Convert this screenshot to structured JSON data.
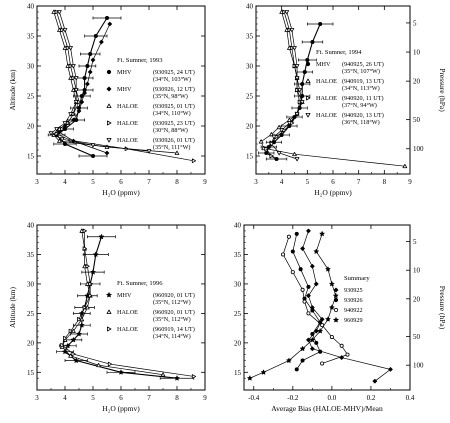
{
  "chart_data": [
    {
      "type": "line",
      "xlabel": "H₂O (ppmv)",
      "ylabel": "Altitude (km)",
      "xlim": [
        3,
        9
      ],
      "ylim": [
        12,
        40
      ],
      "xticks": [
        3,
        4,
        5,
        6,
        7,
        8,
        9
      ],
      "yticks": [
        15,
        20,
        25,
        30,
        35,
        40
      ],
      "legend_title": "Ft. Sumner, 1993",
      "series": [
        {
          "name": "MHV",
          "detail": [
            "(930925, 24 UT)",
            "(34°N, 103°W)"
          ],
          "marker": "filled-circle",
          "x": [
            5.5,
            5.1,
            4.9,
            4.8,
            4.7,
            4.7,
            4.6,
            4.5,
            4.4,
            4.0,
            3.7,
            4.0,
            5.0
          ],
          "y": [
            38,
            35,
            32,
            30,
            28,
            26,
            25,
            23,
            21,
            19.5,
            18.5,
            17,
            15
          ],
          "xerr": [
            0.5,
            0.4,
            0.35,
            0.3,
            0.3,
            0.3,
            0.3,
            0.3,
            0.3,
            0.3,
            0.3,
            0.4,
            0.5
          ]
        },
        {
          "name": "MHV",
          "detail": [
            "(930926, 12 UT)",
            "(35°N, 98°W)"
          ],
          "marker": "filled-diamond",
          "x": [
            5.6,
            5.3,
            5.0,
            4.9,
            4.8,
            4.7,
            4.6,
            4.5,
            4.3,
            4.0,
            3.8,
            4.3,
            5.5
          ],
          "y": [
            37,
            34,
            31,
            29,
            27,
            25.5,
            24,
            22.5,
            21,
            20,
            19,
            17.5,
            15.5
          ]
        },
        {
          "name": "HALOE",
          "detail": [
            "(930925, 01 UT)",
            "(34°N, 110°W)"
          ],
          "marker": "open-triangle-up",
          "x": [
            3.6,
            3.8,
            4.0,
            4.1,
            4.2,
            4.3,
            4.4,
            4.3,
            4.1,
            3.8,
            3.6,
            3.8,
            5.5,
            8.0
          ],
          "y": [
            39,
            36,
            33,
            30,
            28,
            26,
            24,
            22,
            20.5,
            19.5,
            18.5,
            17.5,
            16.5,
            15.5
          ]
        },
        {
          "name": "HALOE",
          "detail": [
            "(930925, 23 UT)",
            "(30°N, 88°W)"
          ],
          "marker": "open-triangle-right",
          "x": [
            3.7,
            3.9,
            4.1,
            4.2,
            4.3,
            4.4,
            4.5,
            4.3,
            4.1,
            3.9,
            3.7,
            4.2,
            6.2,
            8.6
          ],
          "y": [
            39,
            36,
            33,
            30,
            28,
            26,
            24,
            22,
            20.5,
            19.5,
            18.7,
            17.6,
            16.2,
            14.2
          ]
        },
        {
          "name": "HALOE",
          "detail": [
            "(930926, 01 UT)",
            "(35°N, 111°W)"
          ],
          "marker": "open-triangle-down",
          "x": [
            3.8,
            4.0,
            4.2,
            4.3,
            4.4,
            4.4,
            4.4,
            4.2,
            4.0,
            3.7,
            3.5,
            3.9,
            5.0,
            7.0
          ],
          "y": [
            39,
            36,
            33,
            30,
            28,
            26,
            24,
            22,
            20.5,
            19.5,
            18.8,
            17.8,
            16.8,
            15.8
          ]
        }
      ]
    },
    {
      "type": "line",
      "xlabel": "H₂O (ppmv)",
      "ylabel": "",
      "y2label": "Pressure (hPa)",
      "xlim": [
        3,
        9
      ],
      "ylim": [
        12,
        40
      ],
      "xticks": [
        3,
        4,
        5,
        6,
        7,
        8,
        9
      ],
      "yticks": [
        15,
        20,
        25,
        30,
        35,
        40
      ],
      "pressure_ticks": [
        5,
        10,
        20,
        50,
        100
      ],
      "legend_title": "Ft. Sumner, 1994",
      "series": [
        {
          "name": "MHV",
          "detail": [
            "(940925, 26 UT)",
            "(35°N, 107°W)"
          ],
          "marker": "filled-circle",
          "x": [
            5.5,
            5.2,
            5.0,
            4.9,
            4.8,
            4.8,
            4.7,
            4.5,
            4.3,
            4.0,
            3.7,
            3.5,
            3.4,
            3.8
          ],
          "y": [
            37,
            34,
            31,
            29,
            27,
            25,
            23,
            21.5,
            20,
            18.5,
            17.3,
            16.5,
            15.5,
            14.5
          ],
          "xerr": [
            0.5,
            0.4,
            0.35,
            0.3,
            0.3,
            0.3,
            0.3,
            0.3,
            0.3,
            0.3,
            0.3,
            0.3,
            0.3,
            0.4
          ]
        },
        {
          "name": "HALOE",
          "detail": [
            "(940919, 13 UT)",
            "(34°N, 113°W)"
          ],
          "marker": "open-triangle-up",
          "x": [
            4.0,
            4.2,
            4.3,
            4.5,
            4.6,
            4.6,
            4.8,
            4.6,
            4.3,
            3.9,
            3.6,
            3.2,
            3.3,
            4.5,
            8.8
          ],
          "y": [
            39,
            36,
            33,
            30,
            28,
            26,
            24,
            22,
            21,
            19.8,
            18.6,
            17.4,
            16.3,
            15.3,
            13.3
          ]
        },
        {
          "name": "HALOE",
          "detail": [
            "(940920, 11 UT)",
            "(37°N, 94°W)"
          ],
          "marker": "open-triangle-right",
          "x": [
            4.1,
            4.3,
            4.4,
            4.5,
            4.6,
            4.6,
            4.7,
            4.6,
            4.4,
            4.1,
            3.8,
            3.6,
            3.4,
            3.6
          ],
          "y": [
            39,
            36,
            33,
            30,
            28,
            26,
            24,
            22,
            20.5,
            19.3,
            18.2,
            17.2,
            16.2,
            15.0
          ]
        },
        {
          "name": "HALOE",
          "detail": [
            "(940920, 13 UT)",
            "(36°N, 118°W)"
          ],
          "marker": "open-triangle-down",
          "x": [
            4.2,
            4.4,
            4.5,
            4.6,
            4.6,
            4.7,
            4.8,
            4.6,
            4.3,
            4.0,
            3.7,
            3.6,
            3.9,
            4.6
          ],
          "y": [
            39,
            36,
            33,
            30,
            28,
            26,
            24,
            22,
            20.5,
            19.3,
            18.2,
            17,
            15.5,
            14.5
          ]
        }
      ]
    },
    {
      "type": "line",
      "xlabel": "H₂O (ppmv)",
      "ylabel": "Altitude (km)",
      "xlim": [
        3,
        9
      ],
      "ylim": [
        12,
        40
      ],
      "xticks": [
        3,
        4,
        5,
        6,
        7,
        8,
        9
      ],
      "yticks": [
        15,
        20,
        25,
        30,
        35,
        40
      ],
      "legend_title": "Ft. Sumner, 1996",
      "series": [
        {
          "name": "MHV",
          "detail": [
            "(960920, 01 UT)",
            "(35°N, 112°W)"
          ],
          "marker": "filled-star",
          "x": [
            5.3,
            5.1,
            5.0,
            4.9,
            4.8,
            4.7,
            4.6,
            4.6,
            4.5,
            4.3,
            4.1,
            4.0,
            4.4,
            6.0,
            8.0
          ],
          "y": [
            38,
            35,
            32,
            30,
            28,
            26,
            25,
            23,
            21.5,
            20.5,
            19.5,
            18.5,
            17.0,
            15.0,
            14.0
          ],
          "xerr": [
            0.5,
            0.45,
            0.4,
            0.35,
            0.35,
            0.35,
            0.3,
            0.3,
            0.3,
            0.3,
            0.3,
            0.3,
            0.4,
            0.5,
            0.6
          ]
        },
        {
          "name": "HALOE",
          "detail": [
            "(960920, 01 UT)",
            "(35°N, 112°W)"
          ],
          "marker": "open-triangle-up",
          "x": [
            4.6,
            4.7,
            4.7,
            4.8,
            4.9,
            4.8,
            4.6,
            4.3,
            4.0,
            3.9,
            4.2,
            5.2,
            7.5
          ],
          "y": [
            39,
            36,
            33,
            30,
            28,
            26,
            24,
            22,
            20.5,
            19.3,
            17.8,
            16.2,
            14.6
          ]
        },
        {
          "name": "HALOE",
          "detail": [
            "(960919, 14 UT)",
            "(34°N, 114°W)"
          ],
          "marker": "open-triangle-right",
          "x": [
            4.7,
            4.7,
            4.8,
            4.9,
            4.9,
            4.7,
            4.5,
            4.2,
            4.0,
            3.9,
            4.3,
            5.6,
            8.6
          ],
          "y": [
            39,
            36,
            33,
            30,
            28,
            26,
            24,
            22,
            20.8,
            19.6,
            18.1,
            16.4,
            14.3
          ]
        }
      ]
    },
    {
      "type": "line",
      "xlabel": "Average Bias (HALOE-MHV)/Mean",
      "ylabel": "",
      "y2label": "Pressure (hPa)",
      "xlim": [
        -0.45,
        0.4
      ],
      "ylim": [
        12,
        40
      ],
      "xticks": [
        -0.4,
        -0.2,
        0.0,
        0.2,
        0.4
      ],
      "xtick_labels": [
        "-0.4",
        "-0.2",
        "0.0",
        "0.2",
        "0.4"
      ],
      "yticks": [
        15,
        20,
        25,
        30,
        35,
        40
      ],
      "pressure_ticks": [
        5,
        10,
        20,
        50,
        100
      ],
      "legend_title": "Summary",
      "series": [
        {
          "name": "930925",
          "marker": "filled-diamond",
          "x": [
            -0.12,
            -0.15,
            -0.1,
            -0.08,
            -0.12,
            -0.1,
            -0.05,
            -0.08,
            -0.12,
            -0.1,
            0.05,
            0.3,
            0.22
          ],
          "y": [
            39,
            36,
            33,
            30,
            28,
            26,
            24,
            22,
            20.5,
            19,
            17.5,
            15.5,
            13.5
          ]
        },
        {
          "name": "930926",
          "marker": "filled-circle",
          "x": [
            -0.18,
            -0.2,
            -0.16,
            -0.12,
            -0.14,
            -0.1,
            -0.06,
            -0.1,
            -0.08,
            -0.06,
            -0.15,
            -0.18
          ],
          "y": [
            38.5,
            35.5,
            32.5,
            29.5,
            27.5,
            25.5,
            23.5,
            21.5,
            20,
            18.5,
            17,
            15.5
          ]
        },
        {
          "name": "940922",
          "marker": "open-circle",
          "x": [
            -0.22,
            -0.25,
            -0.2,
            -0.15,
            -0.14,
            -0.12,
            -0.05,
            0.0,
            0.05,
            0.08,
            -0.05
          ],
          "y": [
            38,
            35,
            32,
            29,
            27,
            25,
            23,
            21,
            19.5,
            18,
            16.5
          ]
        },
        {
          "name": "960929",
          "marker": "filled-star",
          "x": [
            -0.05,
            -0.08,
            -0.02,
            0.0,
            0.02,
            0.0,
            -0.02,
            -0.06,
            -0.1,
            -0.15,
            -0.22,
            -0.35,
            -0.42
          ],
          "y": [
            38.5,
            35.5,
            32.5,
            30,
            28,
            26,
            24,
            22,
            20.5,
            19,
            17,
            15,
            14
          ]
        }
      ]
    }
  ]
}
